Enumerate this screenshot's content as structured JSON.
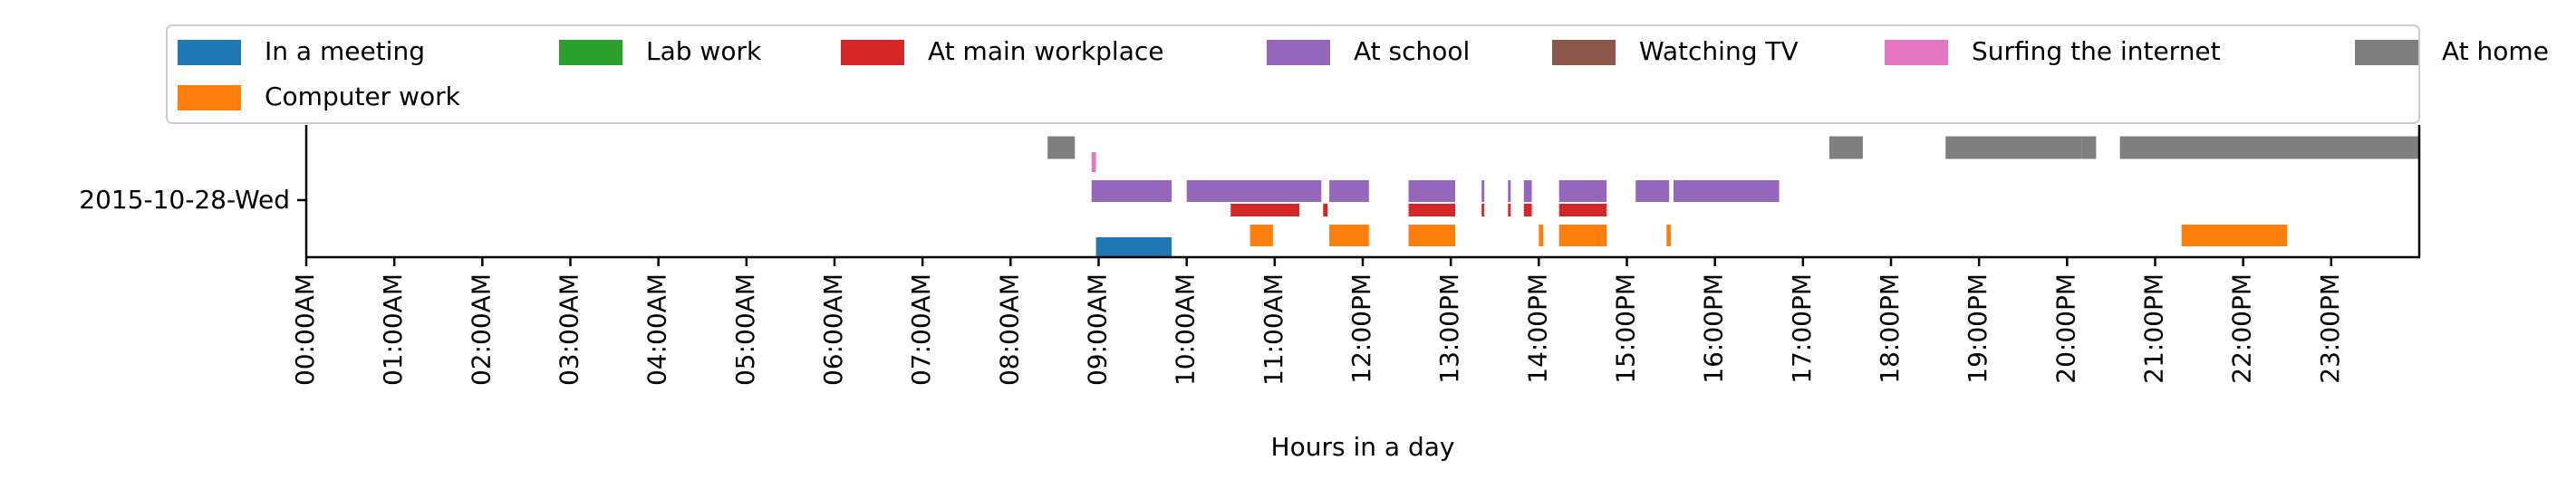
{
  "chart_data": {
    "type": "timeline",
    "title": "",
    "xlabel": "Hours in a day",
    "ylabel": "",
    "xlim": [
      0,
      24
    ],
    "legend_placement": "top",
    "grid": false,
    "row_label": "2015-10-28-Wed",
    "x_ticks": [
      {
        "value": 0,
        "label": "00:00AM"
      },
      {
        "value": 1,
        "label": "01:00AM"
      },
      {
        "value": 2,
        "label": "02:00AM"
      },
      {
        "value": 3,
        "label": "03:00AM"
      },
      {
        "value": 4,
        "label": "04:00AM"
      },
      {
        "value": 5,
        "label": "05:00AM"
      },
      {
        "value": 6,
        "label": "06:00AM"
      },
      {
        "value": 7,
        "label": "07:00AM"
      },
      {
        "value": 8,
        "label": "08:00AM"
      },
      {
        "value": 9,
        "label": "09:00AM"
      },
      {
        "value": 10,
        "label": "10:00AM"
      },
      {
        "value": 11,
        "label": "11:00AM"
      },
      {
        "value": 12,
        "label": "12:00PM"
      },
      {
        "value": 13,
        "label": "13:00PM"
      },
      {
        "value": 14,
        "label": "14:00PM"
      },
      {
        "value": 15,
        "label": "15:00PM"
      },
      {
        "value": 16,
        "label": "16:00PM"
      },
      {
        "value": 17,
        "label": "17:00PM"
      },
      {
        "value": 18,
        "label": "18:00PM"
      },
      {
        "value": 19,
        "label": "19:00PM"
      },
      {
        "value": 20,
        "label": "20:00PM"
      },
      {
        "value": 21,
        "label": "21:00PM"
      },
      {
        "value": 22,
        "label": "22:00PM"
      },
      {
        "value": 23,
        "label": "23:00PM"
      }
    ],
    "series": [
      {
        "name": "In a meeting",
        "color": "#1f77b4",
        "lane": 0,
        "intervals": [
          [
            8.97,
            9.83
          ]
        ]
      },
      {
        "name": "Computer work",
        "color": "#ff7f0e",
        "lane": 1,
        "intervals": [
          [
            10.72,
            10.98
          ],
          [
            11.62,
            12.07
          ],
          [
            12.52,
            13.05
          ],
          [
            14.0,
            14.05
          ],
          [
            14.23,
            14.77
          ],
          [
            15.45,
            15.5
          ],
          [
            21.3,
            22.5
          ]
        ]
      },
      {
        "name": "At main workplace",
        "color": "#d62728",
        "lane": 2,
        "intervals": [
          [
            10.5,
            11.28
          ],
          [
            11.55,
            11.6
          ],
          [
            12.52,
            13.05
          ],
          [
            13.35,
            13.38
          ],
          [
            13.65,
            13.68
          ],
          [
            13.83,
            13.92
          ],
          [
            14.23,
            14.77
          ]
        ]
      },
      {
        "name": "At school",
        "color": "#9467bd",
        "lane": 3,
        "intervals": [
          [
            8.92,
            9.83
          ],
          [
            10.0,
            11.53
          ],
          [
            11.62,
            12.07
          ],
          [
            12.52,
            13.05
          ],
          [
            13.35,
            13.38
          ],
          [
            13.65,
            13.68
          ],
          [
            13.83,
            13.92
          ],
          [
            14.23,
            14.77
          ],
          [
            15.1,
            15.48
          ],
          [
            15.53,
            16.73
          ]
        ]
      },
      {
        "name": "Surfing the internet",
        "color": "#e377c2",
        "lane": 4,
        "intervals": [
          [
            8.92,
            8.97
          ]
        ]
      },
      {
        "name": "At home",
        "color": "#7f7f7f",
        "lane": 5,
        "intervals": [
          [
            8.42,
            8.73
          ],
          [
            17.3,
            17.68
          ],
          [
            18.62,
            20.17
          ],
          [
            20.17,
            20.33
          ],
          [
            20.6,
            24.0
          ]
        ]
      },
      {
        "name": "Lab work",
        "color": "#2ca02c",
        "lane": 6,
        "intervals": []
      },
      {
        "name": "Watching TV",
        "color": "#8c564b",
        "lane": 7,
        "intervals": []
      }
    ],
    "legend": [
      {
        "name": "In a meeting",
        "color": "#1f77b4"
      },
      {
        "name": "Lab work",
        "color": "#2ca02c"
      },
      {
        "name": "At main workplace",
        "color": "#d62728"
      },
      {
        "name": "At school",
        "color": "#9467bd"
      },
      {
        "name": "Watching TV",
        "color": "#8c564b"
      },
      {
        "name": "Surfing the internet",
        "color": "#e377c2"
      },
      {
        "name": "At home",
        "color": "#7f7f7f"
      },
      {
        "name": "Computer work",
        "color": "#ff7f0e"
      }
    ]
  }
}
